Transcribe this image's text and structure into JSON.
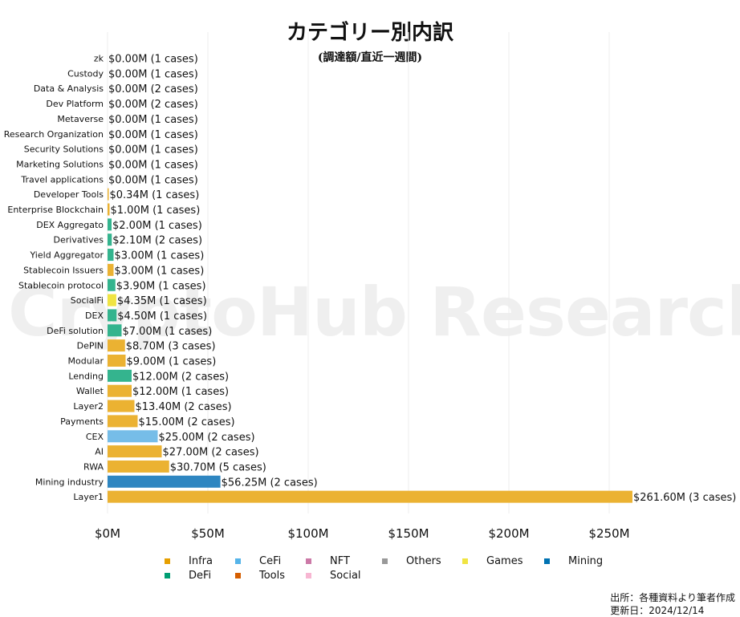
{
  "chart_data": {
    "type": "bar",
    "orientation": "horizontal",
    "title": "カテゴリー別内訳",
    "subtitle": "(調達額/直近一週間)",
    "xlim": [
      0,
      300
    ],
    "xticks": [
      0,
      50,
      100,
      150,
      200,
      250
    ],
    "xtick_labels": [
      "$0M",
      "$50M",
      "$100M",
      "$150M",
      "$200M",
      "$250M"
    ],
    "grid": "vertical",
    "legend_position": "bottom",
    "legend": [
      {
        "name": "Infra",
        "color": "#E69F00"
      },
      {
        "name": "CeFi",
        "color": "#56B4E9"
      },
      {
        "name": "NFT",
        "color": "#CC79A7"
      },
      {
        "name": "Others",
        "color": "#999999"
      },
      {
        "name": "Games",
        "color": "#F0E442"
      },
      {
        "name": "Mining",
        "color": "#0072B2"
      },
      {
        "name": "DeFi",
        "color": "#009E73"
      },
      {
        "name": "Tools",
        "color": "#D55E00"
      },
      {
        "name": "Social",
        "color": "#F7B6D2"
      }
    ],
    "bars": [
      {
        "category": "zk",
        "value": 0.0,
        "label": "$0.00M (1 cases)",
        "group": "Infra"
      },
      {
        "category": "Custody",
        "value": 0.0,
        "label": "$0.00M (1 cases)",
        "group": "CeFi"
      },
      {
        "category": "Data & Analysis",
        "value": 0.0,
        "label": "$0.00M (2 cases)",
        "group": "Tools"
      },
      {
        "category": "Dev Platform",
        "value": 0.0,
        "label": "$0.00M (2 cases)",
        "group": "Tools"
      },
      {
        "category": "Metaverse",
        "value": 0.0,
        "label": "$0.00M (1 cases)",
        "group": "Games"
      },
      {
        "category": "Research Organization",
        "value": 0.0,
        "label": "$0.00M (1 cases)",
        "group": "Others"
      },
      {
        "category": "Security Solutions",
        "value": 0.0,
        "label": "$0.00M (1 cases)",
        "group": "Infra"
      },
      {
        "category": "Marketing Solutions",
        "value": 0.0,
        "label": "$0.00M (1 cases)",
        "group": "Tools"
      },
      {
        "category": "Travel applications",
        "value": 0.0,
        "label": "$0.00M (1 cases)",
        "group": "Others"
      },
      {
        "category": "Developer Tools",
        "value": 0.34,
        "label": "$0.34M (1 cases)",
        "group": "Infra"
      },
      {
        "category": "Enterprise Blockchain",
        "value": 1.0,
        "label": "$1.00M (1 cases)",
        "group": "Infra"
      },
      {
        "category": "DEX Aggregato",
        "value": 2.0,
        "label": "$2.00M (1 cases)",
        "group": "DeFi"
      },
      {
        "category": "Derivatives",
        "value": 2.1,
        "label": "$2.10M (2 cases)",
        "group": "DeFi"
      },
      {
        "category": "Yield Aggregator",
        "value": 3.0,
        "label": "$3.00M (1 cases)",
        "group": "DeFi"
      },
      {
        "category": "Stablecoin Issuers",
        "value": 3.0,
        "label": "$3.00M (1 cases)",
        "group": "Infra"
      },
      {
        "category": "Stablecoin protocol",
        "value": 3.9,
        "label": "$3.90M (1 cases)",
        "group": "DeFi"
      },
      {
        "category": "SocialFi",
        "value": 4.35,
        "label": "$4.35M (1 cases)",
        "group": "Games"
      },
      {
        "category": "DEX",
        "value": 4.5,
        "label": "$4.50M (1 cases)",
        "group": "DeFi"
      },
      {
        "category": "DeFi solution",
        "value": 7.0,
        "label": "$7.00M (1 cases)",
        "group": "DeFi"
      },
      {
        "category": "DePIN",
        "value": 8.7,
        "label": "$8.70M (3 cases)",
        "group": "Infra"
      },
      {
        "category": "Modular",
        "value": 9.0,
        "label": "$9.00M (1 cases)",
        "group": "Infra"
      },
      {
        "category": "Lending",
        "value": 12.0,
        "label": "$12.00M (2 cases)",
        "group": "DeFi"
      },
      {
        "category": "Wallet",
        "value": 12.0,
        "label": "$12.00M (1 cases)",
        "group": "Infra"
      },
      {
        "category": "Layer2",
        "value": 13.4,
        "label": "$13.40M (2 cases)",
        "group": "Infra"
      },
      {
        "category": "Payments",
        "value": 15.0,
        "label": "$15.00M (2 cases)",
        "group": "Infra"
      },
      {
        "category": "CEX",
        "value": 25.0,
        "label": "$25.00M (2 cases)",
        "group": "CeFi"
      },
      {
        "category": "AI",
        "value": 27.0,
        "label": "$27.00M (2 cases)",
        "group": "Infra"
      },
      {
        "category": "RWA",
        "value": 30.7,
        "label": "$30.70M (5 cases)",
        "group": "Infra"
      },
      {
        "category": "Mining industry",
        "value": 56.25,
        "label": "$56.25M (2 cases)",
        "group": "Mining"
      },
      {
        "category": "Layer1",
        "value": 261.6,
        "label": "$261.60M (3 cases)",
        "group": "Infra"
      }
    ]
  },
  "watermark": "CryptoHub Research",
  "source": {
    "line1": "出所：各種資料より筆者作成",
    "line2": "更新日：2024/12/14"
  }
}
